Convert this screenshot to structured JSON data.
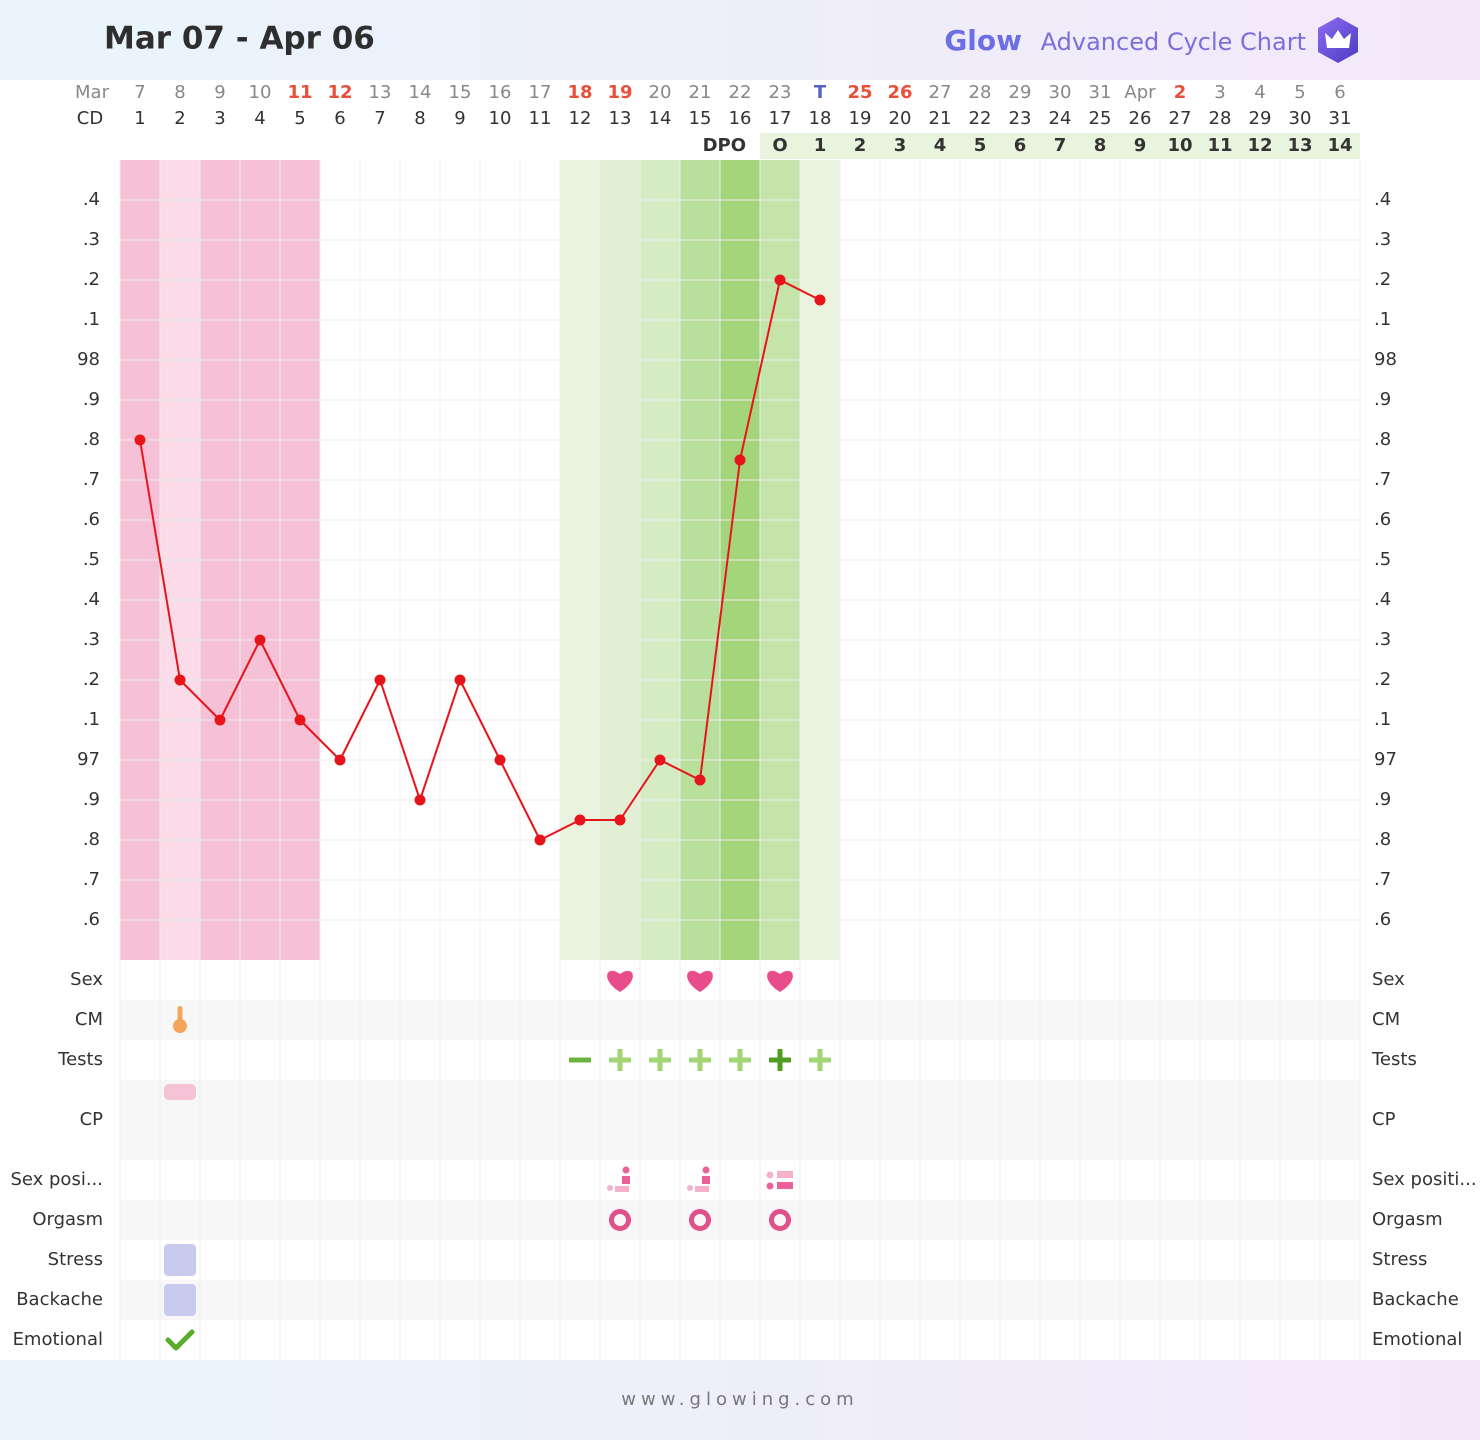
{
  "chart_data": {
    "type": "line",
    "title": "Mar 07 - Apr 06",
    "brand": "Glow",
    "subtitle": "Advanced Cycle Chart",
    "footer": "www.glowing.com",
    "month_label": "Mar",
    "cd_label": "CD",
    "dpo_label": "DPO",
    "dates": [
      "7",
      "8",
      "9",
      "10",
      "11",
      "12",
      "13",
      "14",
      "15",
      "16",
      "17",
      "18",
      "19",
      "20",
      "21",
      "22",
      "23",
      "T",
      "25",
      "26",
      "27",
      "28",
      "29",
      "30",
      "31",
      "Apr",
      "2",
      "3",
      "4",
      "5",
      "6"
    ],
    "date_colors": [
      null,
      null,
      null,
      null,
      "#e8503a",
      "#e8503a",
      null,
      null,
      null,
      null,
      null,
      "#e8503a",
      "#e8503a",
      null,
      null,
      null,
      null,
      "#5563c1",
      "#e8503a",
      "#e8503a",
      null,
      null,
      null,
      null,
      null,
      null,
      "#e8503a",
      null,
      null,
      null,
      null
    ],
    "cd": [
      1,
      2,
      3,
      4,
      5,
      6,
      7,
      8,
      9,
      10,
      11,
      12,
      13,
      14,
      15,
      16,
      17,
      18,
      19,
      20,
      21,
      22,
      23,
      24,
      25,
      26,
      27,
      28,
      29,
      30,
      31
    ],
    "dpo": [
      null,
      null,
      null,
      null,
      null,
      null,
      null,
      null,
      null,
      null,
      null,
      null,
      null,
      null,
      null,
      null,
      "O",
      "1",
      "2",
      "3",
      "4",
      "5",
      "6",
      "7",
      "8",
      "9",
      "10",
      "11",
      "12",
      "13",
      "14"
    ],
    "values": [
      97.8,
      97.2,
      97.1,
      97.3,
      97.1,
      97.0,
      97.2,
      96.9,
      97.2,
      97.0,
      96.8,
      96.85,
      96.85,
      97.0,
      96.95,
      97.75,
      98.2,
      98.15,
      null,
      null,
      null,
      null,
      null,
      null,
      null,
      null,
      null,
      null,
      null,
      null,
      null
    ],
    "color": "#e8141c",
    "ylim": [
      96.5,
      98.5
    ],
    "yticks": [
      {
        "value": 96.6,
        "label": ".6"
      },
      {
        "value": 96.7,
        "label": ".7"
      },
      {
        "value": 96.8,
        "label": ".8"
      },
      {
        "value": 96.9,
        "label": ".9"
      },
      97,
      {
        "value": 97.1,
        "label": ".1"
      },
      {
        "value": 97.2,
        "label": ".2"
      },
      {
        "value": 97.3,
        "label": ".3"
      },
      {
        "value": 97.4,
        "label": ".4"
      },
      {
        "value": 97.5,
        "label": ".5"
      },
      {
        "value": 97.6,
        "label": ".6"
      },
      {
        "value": 97.7,
        "label": ".7"
      },
      {
        "value": 97.8,
        "label": ".8"
      },
      {
        "value": 97.9,
        "label": ".9"
      },
      98,
      {
        "value": 98.1,
        "label": ".1"
      },
      {
        "value": 98.2,
        "label": ".2"
      },
      {
        "value": 98.3,
        "label": ".3"
      },
      {
        "value": 98.4,
        "label": ".4"
      }
    ],
    "grid": true,
    "column_shades": [
      "#f6c0d6",
      "#fadbe7",
      "#f6c0d6",
      "#f6c0d6",
      "#f6c0d6",
      null,
      null,
      null,
      null,
      null,
      null,
      "#e9f4df",
      "#e1f0d4",
      "#d5ebc3",
      "#b8df9b",
      "#a5d57b",
      "#c5e4aa",
      "#e9f4df",
      null,
      null,
      null,
      null,
      null,
      null,
      null,
      null,
      null,
      null,
      null,
      null,
      null
    ],
    "log_rows": [
      {
        "label": "Sex",
        "right_label": "Sex",
        "icon": "heart",
        "days": [
          13,
          15,
          17
        ]
      },
      {
        "label": "CM",
        "right_label": "CM",
        "icon": "drop",
        "days": [
          2
        ]
      },
      {
        "label": "Tests",
        "right_label": "Tests",
        "icons": [
          "minus",
          "plus",
          "plus",
          "plus",
          "plus",
          "peak",
          "plus"
        ],
        "days": [
          12,
          13,
          14,
          15,
          16,
          17,
          18
        ]
      },
      {
        "label": "CP",
        "right_label": "CP",
        "icon": "cp",
        "days": [
          2
        ]
      },
      {
        "label": "Sex posi...",
        "right_label": "Sex positi...",
        "icons": [
          "pos-a",
          "pos-a",
          "pos-b"
        ],
        "days": [
          13,
          15,
          17
        ]
      },
      {
        "label": "Orgasm",
        "right_label": "Orgasm",
        "icon": "ring",
        "days": [
          13,
          15,
          17
        ]
      },
      {
        "label": "Stress",
        "right_label": "Stress",
        "icon": "square",
        "days": [
          2
        ]
      },
      {
        "label": "Backache",
        "right_label": "Backache",
        "icon": "square",
        "days": [
          2
        ]
      },
      {
        "label": "Emotional",
        "right_label": "Emotional",
        "icon": "check",
        "days": [
          2
        ]
      }
    ]
  }
}
